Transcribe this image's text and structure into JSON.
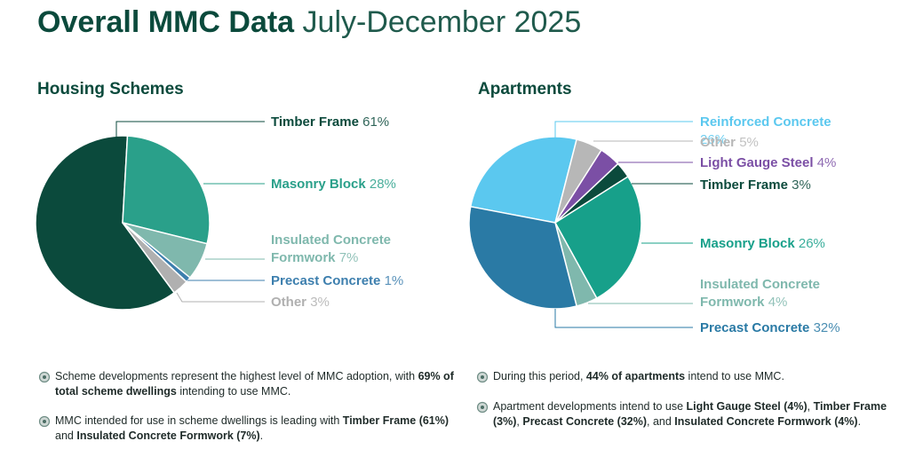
{
  "title": "Overall MMC Data",
  "subtitle": "July-December 2025",
  "chart_data": [
    {
      "type": "pie",
      "title": "Housing Schemes",
      "categories": [
        "Timber Frame",
        "Masonry Block",
        "Insulated Concrete Formwork",
        "Precast Concrete",
        "Other"
      ],
      "values": [
        61,
        28,
        7,
        1,
        3
      ],
      "value_labels": [
        "61%",
        "28%",
        "7%",
        "1%",
        "3%"
      ],
      "colors": [
        "#0b4a3c",
        "#2aa08a",
        "#7fb8ad",
        "#3d7fae",
        "#b0b0b0"
      ],
      "notes": [
        [
          "Scheme developments represent the highest level of MMC adoption, with ",
          "69% of total scheme dwellings",
          " intending to use MMC."
        ],
        [
          "MMC intended for use in scheme dwellings is leading with ",
          "Timber Frame (61%)",
          " and ",
          "Insulated Concrete Formwork (7%)",
          "."
        ]
      ]
    },
    {
      "type": "pie",
      "title": "Apartments",
      "categories": [
        "Reinforced Concrete",
        "Other",
        "Light Gauge Steel",
        "Timber Frame",
        "Masonry Block",
        "Insulated Concrete Formwork",
        "Precast Concrete"
      ],
      "values": [
        26,
        5,
        4,
        3,
        26,
        4,
        32
      ],
      "value_labels": [
        "26%",
        "5%",
        "4%",
        "3%",
        "26%",
        "4%",
        "32%"
      ],
      "colors": [
        "#5bc8ef",
        "#b7b7b7",
        "#7b4fa5",
        "#0b4a3c",
        "#17a08a",
        "#7fb8ad",
        "#2a7aa5"
      ],
      "notes": [
        [
          "During this period, ",
          "44% of apartments",
          " intend to use MMC."
        ],
        [
          "Apartment developments intend to use ",
          "Light Gauge Steel (4%)",
          ", ",
          "Timber Frame (3%)",
          ", ",
          "Precast Concrete (32%)",
          ", and ",
          "Insulated Concrete Formwork (4%)",
          "."
        ]
      ]
    }
  ]
}
